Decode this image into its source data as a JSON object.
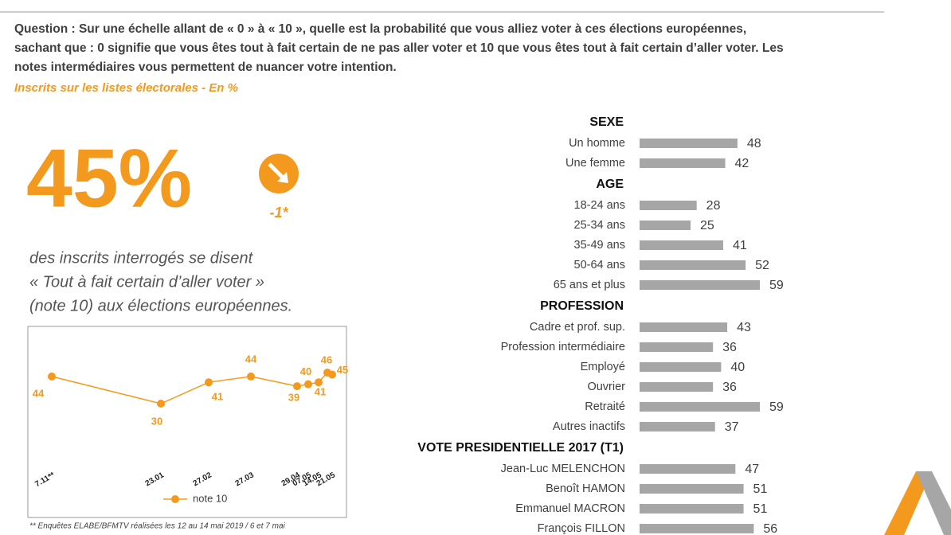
{
  "question": [
    "Question : Sur une échelle allant de « 0 » à « 10 », quelle est la probabilité que vous alliez voter à ces élections européennes,",
    "sachant que : 0 signifie que vous êtes tout à fait certain de ne pas aller voter et 10 que vous êtes tout à fait certain d’aller voter. Les",
    "notes intermédiaires vous permettent de nuancer votre intention."
  ],
  "subtitle": "Inscrits sur les listes électorales - En %",
  "headline": {
    "value": "45%",
    "change": "-1*"
  },
  "statement": [
    "des inscrits interrogés se disent",
    "« Tout à fait certain d’aller voter »",
    "(note 10) aux élections européennes."
  ],
  "footnote": "** Enquêtes ELABE/BFMTV réalisées les 12 au 14 mai 2019 / 6 et 7 mai",
  "chart_data": [
    {
      "type": "line",
      "categories": [
        "7.11**",
        "23.01",
        "27.02",
        "27.03",
        "29.04",
        "07.05",
        "14.05",
        null,
        "21.05"
      ],
      "series": [
        {
          "name": "note 10",
          "color": "#f39a1e",
          "values": [
            44,
            30,
            41,
            44,
            39,
            40,
            41,
            46,
            45
          ]
        }
      ]
    },
    {
      "type": "hbar",
      "color": "#a6a6a6",
      "groups": [
        {
          "name": "SEXE",
          "categories": [
            "Un homme",
            "Une femme"
          ],
          "values": [
            48,
            42
          ]
        },
        {
          "name": "AGE",
          "categories": [
            "18-24 ans",
            "25-34 ans",
            "35-49 ans",
            "50-64 ans",
            "65 ans et plus"
          ],
          "values": [
            28,
            25,
            41,
            52,
            59
          ]
        },
        {
          "name": "PROFESSION",
          "categories": [
            "Cadre et prof. sup.",
            "Profession intermédiaire",
            "Employé",
            "Ouvrier",
            "Retraité",
            "Autres inactifs"
          ],
          "values": [
            43,
            36,
            40,
            36,
            59,
            37
          ]
        },
        {
          "name": "VOTE PRESIDENTIELLE 2017 (T1)",
          "categories": [
            "Jean-Luc MELENCHON",
            "Benoît HAMON",
            "Emmanuel MACRON",
            "François FILLON"
          ],
          "values": [
            47,
            51,
            51,
            56
          ]
        }
      ]
    }
  ]
}
